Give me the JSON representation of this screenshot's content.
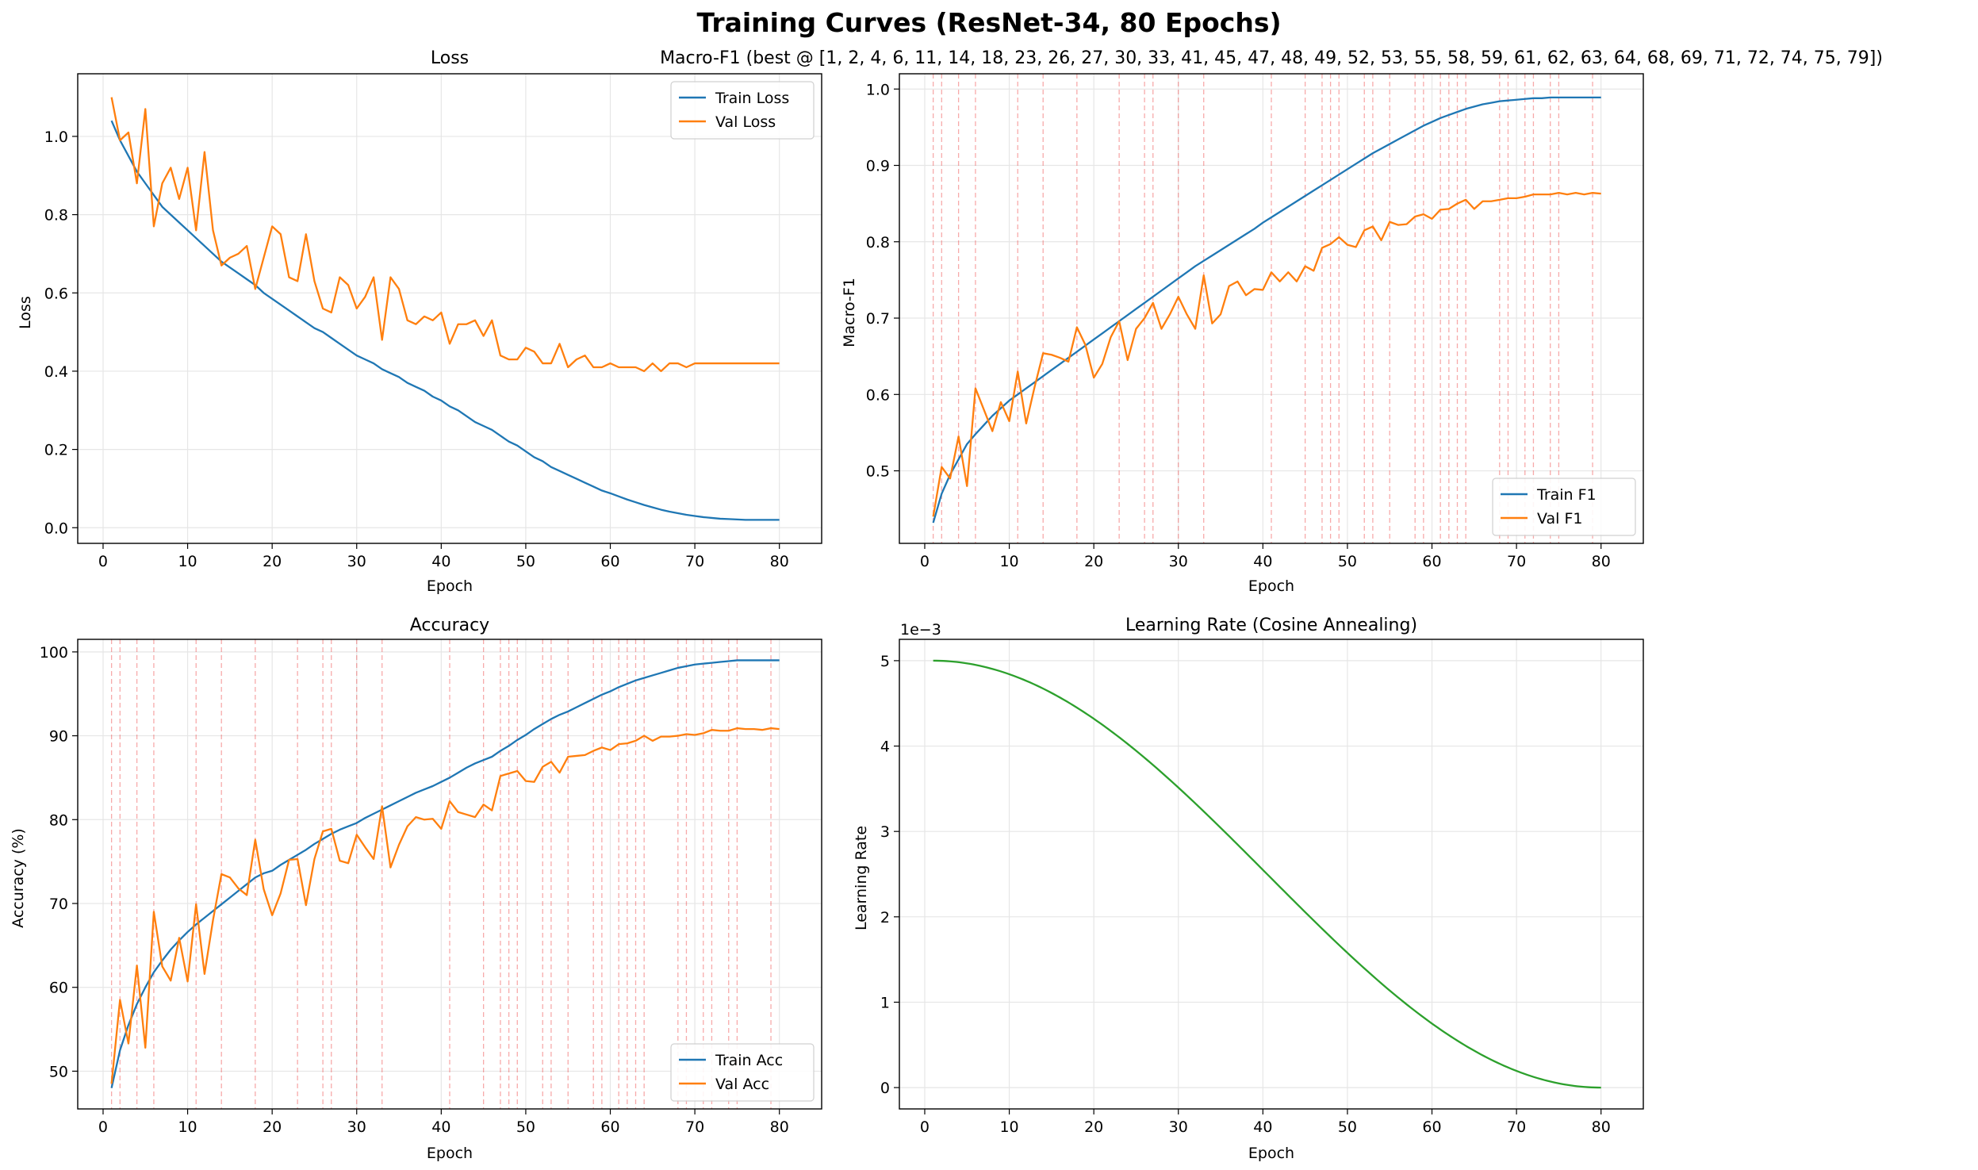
{
  "figure": {
    "title": "Training Curves (ResNet-34, 80 Epochs)"
  },
  "colors": {
    "train": "#1f77b4",
    "val": "#ff7f0e",
    "lr": "#2ca02c",
    "best_marker": "#ee4444",
    "grid": "#e6e6e6"
  },
  "chart_data": [
    {
      "type": "line",
      "title": "Loss",
      "xlabel": "Epoch",
      "ylabel": "Loss",
      "xlim": [
        -3,
        85
      ],
      "ylim": [
        -0.04,
        1.16
      ],
      "xticks": [
        0,
        10,
        20,
        30,
        40,
        50,
        60,
        70,
        80
      ],
      "yticks": [
        "0.0",
        "0.2",
        "0.4",
        "0.6",
        "0.8",
        "1.0"
      ],
      "grid": true,
      "legend": "upper right",
      "x": [
        1,
        2,
        3,
        4,
        5,
        6,
        7,
        8,
        9,
        10,
        11,
        12,
        13,
        14,
        15,
        16,
        17,
        18,
        19,
        20,
        21,
        22,
        23,
        24,
        25,
        26,
        27,
        28,
        29,
        30,
        31,
        32,
        33,
        34,
        35,
        36,
        37,
        38,
        39,
        40,
        41,
        42,
        43,
        44,
        45,
        46,
        47,
        48,
        49,
        50,
        51,
        52,
        53,
        54,
        55,
        56,
        57,
        58,
        59,
        60,
        61,
        62,
        63,
        64,
        65,
        66,
        67,
        68,
        69,
        70,
        71,
        72,
        73,
        74,
        75,
        76,
        77,
        78,
        79,
        80
      ],
      "series": [
        {
          "name": "Train Loss",
          "values": [
            1.04,
            0.99,
            0.95,
            0.91,
            0.88,
            0.85,
            0.82,
            0.8,
            0.78,
            0.76,
            0.74,
            0.72,
            0.7,
            0.68,
            0.665,
            0.65,
            0.635,
            0.62,
            0.6,
            0.585,
            0.57,
            0.555,
            0.54,
            0.525,
            0.51,
            0.5,
            0.485,
            0.47,
            0.455,
            0.44,
            0.43,
            0.42,
            0.405,
            0.395,
            0.385,
            0.37,
            0.36,
            0.35,
            0.335,
            0.325,
            0.31,
            0.3,
            0.285,
            0.27,
            0.26,
            0.25,
            0.235,
            0.22,
            0.21,
            0.195,
            0.18,
            0.17,
            0.155,
            0.145,
            0.135,
            0.125,
            0.115,
            0.105,
            0.095,
            0.088,
            0.08,
            0.072,
            0.065,
            0.058,
            0.052,
            0.046,
            0.041,
            0.037,
            0.033,
            0.03,
            0.027,
            0.025,
            0.023,
            0.022,
            0.021,
            0.02,
            0.02,
            0.02,
            0.02,
            0.02
          ]
        },
        {
          "name": "Val Loss",
          "values": [
            1.1,
            0.99,
            1.01,
            0.88,
            1.07,
            0.77,
            0.88,
            0.92,
            0.84,
            0.92,
            0.76,
            0.96,
            0.76,
            0.67,
            0.69,
            0.7,
            0.72,
            0.61,
            0.69,
            0.77,
            0.75,
            0.64,
            0.63,
            0.75,
            0.63,
            0.56,
            0.55,
            0.64,
            0.62,
            0.56,
            0.59,
            0.64,
            0.48,
            0.64,
            0.61,
            0.53,
            0.52,
            0.54,
            0.53,
            0.55,
            0.47,
            0.52,
            0.52,
            0.53,
            0.49,
            0.53,
            0.44,
            0.43,
            0.43,
            0.46,
            0.45,
            0.42,
            0.42,
            0.47,
            0.41,
            0.43,
            0.44,
            0.41,
            0.41,
            0.42,
            0.41,
            0.41,
            0.41,
            0.4,
            0.42,
            0.4,
            0.42,
            0.42,
            0.41,
            0.42,
            0.42,
            0.42,
            0.42,
            0.42,
            0.42,
            0.42,
            0.42,
            0.42,
            0.42,
            0.42
          ]
        }
      ]
    },
    {
      "type": "line",
      "title": "Macro-F1 (best @ [1, 2, 4, 6, 11, 14, 18, 23, 26, 27, 30, 33, 41, 45, 47, 48, 49, 52, 53, 55, 58, 59, 61, 62, 63, 64, 68, 69, 71, 72, 74, 75, 79])",
      "xlabel": "Epoch",
      "ylabel": "Macro-F1",
      "xlim": [
        -3,
        85
      ],
      "ylim": [
        0.405,
        1.02
      ],
      "xticks": [
        0,
        10,
        20,
        30,
        40,
        50,
        60,
        70,
        80
      ],
      "yticks": [
        "0.5",
        "0.6",
        "0.7",
        "0.8",
        "0.9",
        "1.0"
      ],
      "grid": true,
      "legend": "lower right",
      "best_epochs": [
        1,
        2,
        4,
        6,
        11,
        14,
        18,
        23,
        26,
        27,
        30,
        33,
        41,
        45,
        47,
        48,
        49,
        52,
        53,
        55,
        58,
        59,
        61,
        62,
        63,
        64,
        68,
        69,
        71,
        72,
        74,
        75,
        79
      ],
      "x": [
        1,
        2,
        3,
        4,
        5,
        6,
        7,
        8,
        9,
        10,
        11,
        12,
        13,
        14,
        15,
        16,
        17,
        18,
        19,
        20,
        21,
        22,
        23,
        24,
        25,
        26,
        27,
        28,
        29,
        30,
        31,
        32,
        33,
        34,
        35,
        36,
        37,
        38,
        39,
        40,
        41,
        42,
        43,
        44,
        45,
        46,
        47,
        48,
        49,
        50,
        51,
        52,
        53,
        54,
        55,
        56,
        57,
        58,
        59,
        60,
        61,
        62,
        63,
        64,
        65,
        66,
        67,
        68,
        69,
        70,
        71,
        72,
        73,
        74,
        75,
        76,
        77,
        78,
        79,
        80
      ],
      "series": [
        {
          "name": "Train F1",
          "values": [
            0.432,
            0.47,
            0.495,
            0.515,
            0.535,
            0.548,
            0.56,
            0.572,
            0.582,
            0.592,
            0.6,
            0.608,
            0.616,
            0.624,
            0.632,
            0.64,
            0.648,
            0.656,
            0.664,
            0.672,
            0.68,
            0.688,
            0.696,
            0.704,
            0.712,
            0.72,
            0.728,
            0.736,
            0.744,
            0.752,
            0.76,
            0.768,
            0.775,
            0.782,
            0.789,
            0.796,
            0.803,
            0.81,
            0.817,
            0.825,
            0.832,
            0.839,
            0.846,
            0.853,
            0.86,
            0.867,
            0.874,
            0.881,
            0.888,
            0.895,
            0.902,
            0.909,
            0.916,
            0.922,
            0.928,
            0.934,
            0.94,
            0.946,
            0.952,
            0.957,
            0.962,
            0.966,
            0.97,
            0.974,
            0.977,
            0.98,
            0.982,
            0.984,
            0.985,
            0.986,
            0.987,
            0.988,
            0.988,
            0.989,
            0.989,
            0.989,
            0.989,
            0.989,
            0.989,
            0.989
          ]
        },
        {
          "name": "Val F1",
          "values": [
            0.44,
            0.505,
            0.49,
            0.545,
            0.48,
            0.608,
            0.58,
            0.552,
            0.59,
            0.565,
            0.63,
            0.562,
            0.61,
            0.654,
            0.652,
            0.648,
            0.643,
            0.688,
            0.665,
            0.622,
            0.64,
            0.675,
            0.696,
            0.645,
            0.686,
            0.7,
            0.72,
            0.686,
            0.705,
            0.728,
            0.705,
            0.686,
            0.756,
            0.693,
            0.705,
            0.742,
            0.748,
            0.73,
            0.738,
            0.737,
            0.76,
            0.748,
            0.76,
            0.748,
            0.768,
            0.762,
            0.792,
            0.797,
            0.806,
            0.796,
            0.793,
            0.815,
            0.82,
            0.802,
            0.826,
            0.822,
            0.823,
            0.833,
            0.836,
            0.83,
            0.842,
            0.843,
            0.85,
            0.855,
            0.843,
            0.853,
            0.853,
            0.855,
            0.857,
            0.857,
            0.859,
            0.862,
            0.862,
            0.862,
            0.864,
            0.862,
            0.864,
            0.862,
            0.864,
            0.863
          ]
        }
      ]
    },
    {
      "type": "line",
      "title": "Accuracy",
      "xlabel": "Epoch",
      "ylabel": "Accuracy (%)",
      "xlim": [
        -3,
        85
      ],
      "ylim": [
        45.5,
        101.5
      ],
      "xticks": [
        0,
        10,
        20,
        30,
        40,
        50,
        60,
        70,
        80
      ],
      "yticks": [
        "50",
        "60",
        "70",
        "80",
        "90",
        "100"
      ],
      "grid": true,
      "legend": "lower right",
      "best_epochs": [
        1,
        2,
        4,
        6,
        11,
        14,
        18,
        23,
        26,
        27,
        30,
        33,
        41,
        45,
        47,
        48,
        49,
        52,
        53,
        55,
        58,
        59,
        61,
        62,
        63,
        64,
        68,
        69,
        71,
        72,
        74,
        75,
        79
      ],
      "x": [
        1,
        2,
        3,
        4,
        5,
        6,
        7,
        8,
        9,
        10,
        11,
        12,
        13,
        14,
        15,
        16,
        17,
        18,
        19,
        20,
        21,
        22,
        23,
        24,
        25,
        26,
        27,
        28,
        29,
        30,
        31,
        32,
        33,
        34,
        35,
        36,
        37,
        38,
        39,
        40,
        41,
        42,
        43,
        44,
        45,
        46,
        47,
        48,
        49,
        50,
        51,
        52,
        53,
        54,
        55,
        56,
        57,
        58,
        59,
        60,
        61,
        62,
        63,
        64,
        65,
        66,
        67,
        68,
        69,
        70,
        71,
        72,
        73,
        74,
        75,
        76,
        77,
        78,
        79,
        80
      ],
      "series": [
        {
          "name": "Train Acc",
          "values": [
            48.0,
            52.5,
            55.5,
            58.0,
            60.0,
            61.8,
            63.2,
            64.5,
            65.6,
            66.6,
            67.5,
            68.3,
            69.1,
            69.9,
            70.7,
            71.5,
            72.3,
            73.1,
            73.6,
            73.9,
            74.6,
            75.2,
            75.8,
            76.4,
            77.1,
            77.7,
            78.3,
            78.8,
            79.2,
            79.6,
            80.2,
            80.7,
            81.2,
            81.7,
            82.2,
            82.7,
            83.2,
            83.6,
            84.0,
            84.5,
            85.0,
            85.6,
            86.2,
            86.7,
            87.1,
            87.5,
            88.2,
            88.8,
            89.5,
            90.1,
            90.8,
            91.4,
            92.0,
            92.5,
            92.9,
            93.4,
            93.9,
            94.4,
            94.9,
            95.3,
            95.8,
            96.2,
            96.6,
            96.9,
            97.2,
            97.5,
            97.8,
            98.1,
            98.3,
            98.5,
            98.6,
            98.7,
            98.8,
            98.9,
            99.0,
            99.0,
            99.0,
            99.0,
            99.0,
            99.0
          ]
        },
        {
          "name": "Val Acc",
          "values": [
            48.5,
            58.5,
            53.3,
            62.6,
            52.8,
            69.0,
            62.5,
            60.8,
            65.9,
            60.7,
            69.9,
            61.6,
            68.0,
            73.5,
            73.1,
            71.8,
            71.0,
            77.6,
            71.7,
            68.6,
            71.2,
            75.2,
            75.3,
            69.8,
            75.3,
            78.6,
            78.9,
            75.1,
            74.8,
            78.2,
            76.7,
            75.3,
            81.6,
            74.3,
            77.0,
            79.2,
            80.3,
            80.0,
            80.1,
            78.9,
            82.2,
            80.9,
            80.6,
            80.3,
            81.8,
            81.1,
            85.2,
            85.5,
            85.8,
            84.6,
            84.5,
            86.3,
            86.9,
            85.6,
            87.5,
            87.6,
            87.7,
            88.2,
            88.6,
            88.3,
            89.0,
            89.1,
            89.4,
            90.0,
            89.4,
            89.9,
            89.9,
            90.0,
            90.2,
            90.1,
            90.3,
            90.7,
            90.6,
            90.6,
            90.9,
            90.8,
            90.8,
            90.7,
            90.9,
            90.8
          ]
        }
      ]
    },
    {
      "type": "line",
      "title": "Learning Rate (Cosine Annealing)",
      "xlabel": "Epoch",
      "ylabel": "Learning Rate",
      "offset_label": "1e−3",
      "xlim": [
        -3,
        85
      ],
      "ylim": [
        -0.25,
        5.25
      ],
      "xticks": [
        0,
        10,
        20,
        30,
        40,
        50,
        60,
        70,
        80
      ],
      "yticks": [
        "0",
        "1",
        "2",
        "3",
        "4",
        "5"
      ],
      "grid": true,
      "legend": "none",
      "series": [
        {
          "name": "",
          "schedule": "cosine",
          "from": 5.0,
          "to": 0.0,
          "epochs": [
            1,
            80
          ]
        }
      ]
    }
  ]
}
